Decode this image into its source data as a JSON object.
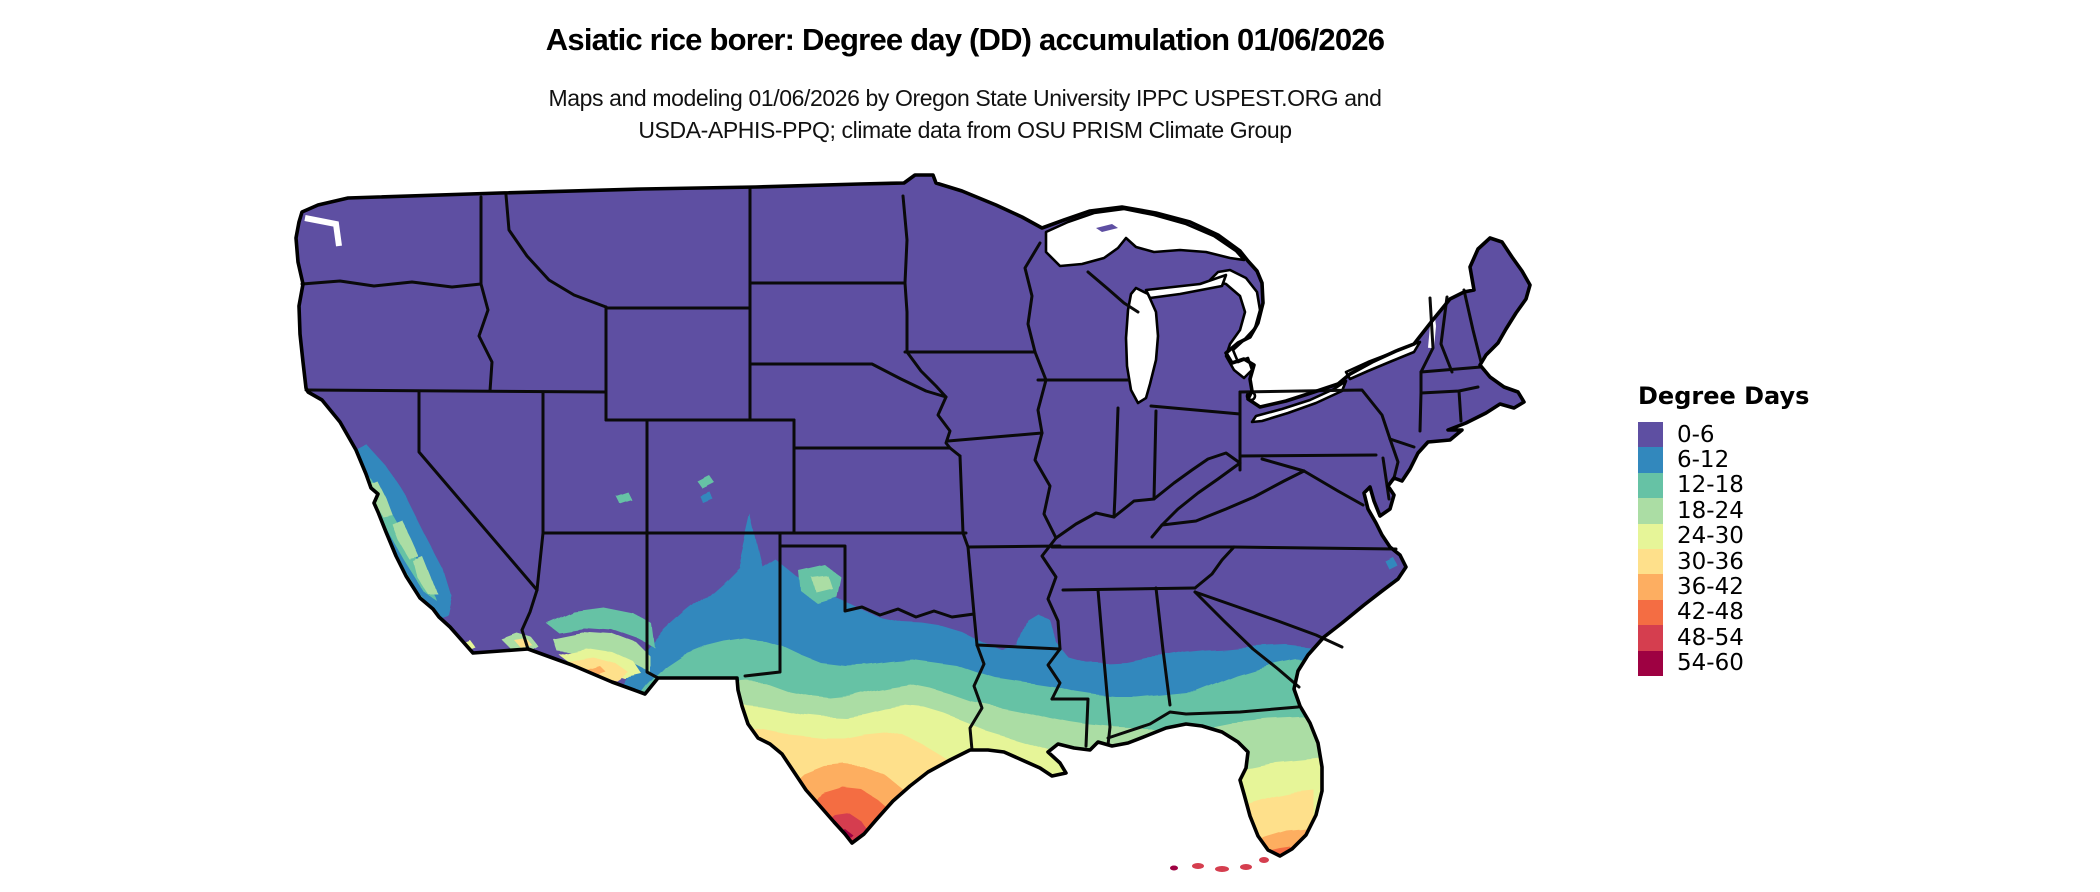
{
  "title": "Asiatic rice borer: Degree day (DD) accumulation 01/06/2026",
  "subtitle_line1": "Maps and modeling 01/06/2026 by Oregon State University IPPC USPEST.ORG and",
  "subtitle_line2": "USDA-APHIS-PPQ; climate data from OSU PRISM Climate Group",
  "legend": {
    "title": "Degree Days",
    "items": [
      {
        "label": "0-6",
        "color": "#5e4fa2"
      },
      {
        "label": "6-12",
        "color": "#3288bd"
      },
      {
        "label": "12-18",
        "color": "#66c2a5"
      },
      {
        "label": "18-24",
        "color": "#abdda4"
      },
      {
        "label": "24-30",
        "color": "#e6f598"
      },
      {
        "label": "30-36",
        "color": "#fee08b"
      },
      {
        "label": "36-42",
        "color": "#fdae61"
      },
      {
        "label": "42-48",
        "color": "#f46d43"
      },
      {
        "label": "48-54",
        "color": "#d53e4f"
      },
      {
        "label": "54-60",
        "color": "#9e0142"
      }
    ]
  },
  "map": {
    "region": "Contiguous United States",
    "style": "degree-day raster choropleth",
    "state_border_color": "#000000",
    "water_color": "#ffffff",
    "background_color": "#ffffff"
  }
}
